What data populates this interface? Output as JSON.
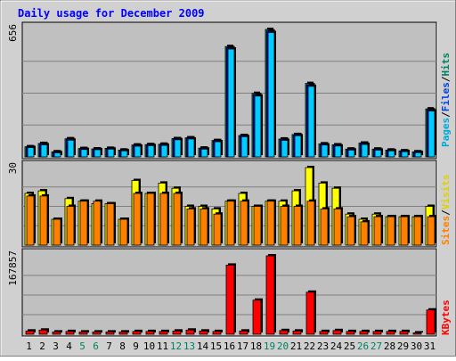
{
  "title": "Daily usage for December 2009",
  "legend_top": [
    {
      "text": "Pages",
      "color": "#00a8d8"
    },
    {
      "text": "/",
      "color": "#000000"
    },
    {
      "text": "Files",
      "color": "#0040e0"
    },
    {
      "text": "/",
      "color": "#000000"
    },
    {
      "text": "Hits",
      "color": "#008060"
    }
  ],
  "legend_mid": [
    {
      "text": "Sites",
      "color": "#ff8000"
    },
    {
      "text": "/",
      "color": "#000000"
    },
    {
      "text": "Visits",
      "color": "#e0d000"
    }
  ],
  "legend_bot": [
    {
      "text": "KBytes",
      "color": "#ff0000"
    }
  ],
  "colors": {
    "background": "#d0d0d0",
    "panel": "#c0c0c0",
    "pages": "#00ccff",
    "files": "#0000ff",
    "hits": "#008060",
    "visits": "#ffff00",
    "sites": "#ff8000",
    "kbytes": "#ff0000",
    "title": "#0000ff",
    "weekend_label": "#008060"
  },
  "chart_data": [
    {
      "type": "bar",
      "panel": "hits-files-pages",
      "ymax_label": "656",
      "ylim": [
        0,
        656
      ],
      "categories": [
        "1",
        "2",
        "3",
        "4",
        "5",
        "6",
        "7",
        "8",
        "9",
        "10",
        "11",
        "12",
        "13",
        "14",
        "15",
        "16",
        "17",
        "18",
        "19",
        "20",
        "21",
        "22",
        "23",
        "24",
        "25",
        "26",
        "27",
        "28",
        "29",
        "30",
        "31"
      ],
      "weekend_days": [
        "5",
        "6",
        "12",
        "13",
        "19",
        "20",
        "26",
        "27"
      ],
      "series": [
        {
          "name": "Hits",
          "values": [
            52,
            69,
            26,
            93,
            43,
            41,
            44,
            35,
            61,
            63,
            65,
            94,
            98,
            45,
            84,
            568,
            110,
            327,
            656,
            92,
            115,
            378,
            67,
            62,
            40,
            71,
            40,
            35,
            31,
            26,
            247
          ]
        },
        {
          "name": "Files",
          "values": [
            52,
            69,
            26,
            93,
            43,
            41,
            44,
            35,
            61,
            63,
            65,
            94,
            98,
            45,
            84,
            562,
            110,
            320,
            648,
            92,
            115,
            371,
            67,
            62,
            40,
            71,
            40,
            35,
            31,
            26,
            242
          ]
        },
        {
          "name": "Pages",
          "values": [
            48,
            62,
            21,
            86,
            38,
            37,
            40,
            31,
            55,
            58,
            59,
            88,
            92,
            40,
            78,
            555,
            104,
            313,
            640,
            85,
            109,
            363,
            61,
            56,
            35,
            64,
            35,
            31,
            27,
            22,
            236
          ]
        }
      ]
    },
    {
      "type": "bar",
      "panel": "visits-sites",
      "ymax_label": "30",
      "ylim": [
        0,
        30
      ],
      "categories": [
        "1",
        "2",
        "3",
        "4",
        "5",
        "6",
        "7",
        "8",
        "9",
        "10",
        "11",
        "12",
        "13",
        "14",
        "15",
        "16",
        "17",
        "18",
        "19",
        "20",
        "21",
        "22",
        "23",
        "24",
        "25",
        "26",
        "27",
        "28",
        "29",
        "30",
        "31"
      ],
      "series": [
        {
          "name": "Visits",
          "values": [
            20,
            21,
            10,
            18,
            17,
            16,
            16,
            10,
            25,
            20,
            24,
            22,
            15,
            15,
            14,
            17,
            20,
            15,
            17,
            17,
            21,
            30,
            24,
            22,
            12,
            10,
            12,
            11,
            11,
            11,
            15
          ]
        },
        {
          "name": "Sites",
          "values": [
            19,
            19,
            10,
            15,
            17,
            17,
            16,
            10,
            20,
            20,
            20,
            20,
            14,
            14,
            12,
            17,
            17,
            15,
            17,
            15,
            15,
            17,
            14,
            14,
            11,
            9,
            11,
            11,
            11,
            11,
            11
          ]
        }
      ]
    },
    {
      "type": "bar",
      "panel": "kbytes",
      "ymax_label": "167857",
      "ylim": [
        0,
        167857
      ],
      "categories": [
        "1",
        "2",
        "3",
        "4",
        "5",
        "6",
        "7",
        "8",
        "9",
        "10",
        "11",
        "12",
        "13",
        "14",
        "15",
        "16",
        "17",
        "18",
        "19",
        "20",
        "21",
        "22",
        "23",
        "24",
        "25",
        "26",
        "27",
        "28",
        "29",
        "30",
        "31"
      ],
      "series": [
        {
          "name": "KBytes",
          "values": [
            7000,
            9000,
            5000,
            6000,
            5000,
            5000,
            5000,
            5000,
            6000,
            6000,
            6000,
            7000,
            9000,
            7000,
            6000,
            148000,
            7000,
            73000,
            167857,
            8000,
            7000,
            90000,
            6000,
            8000,
            6000,
            6000,
            6000,
            6000,
            6000,
            3000,
            52000
          ]
        }
      ]
    }
  ]
}
